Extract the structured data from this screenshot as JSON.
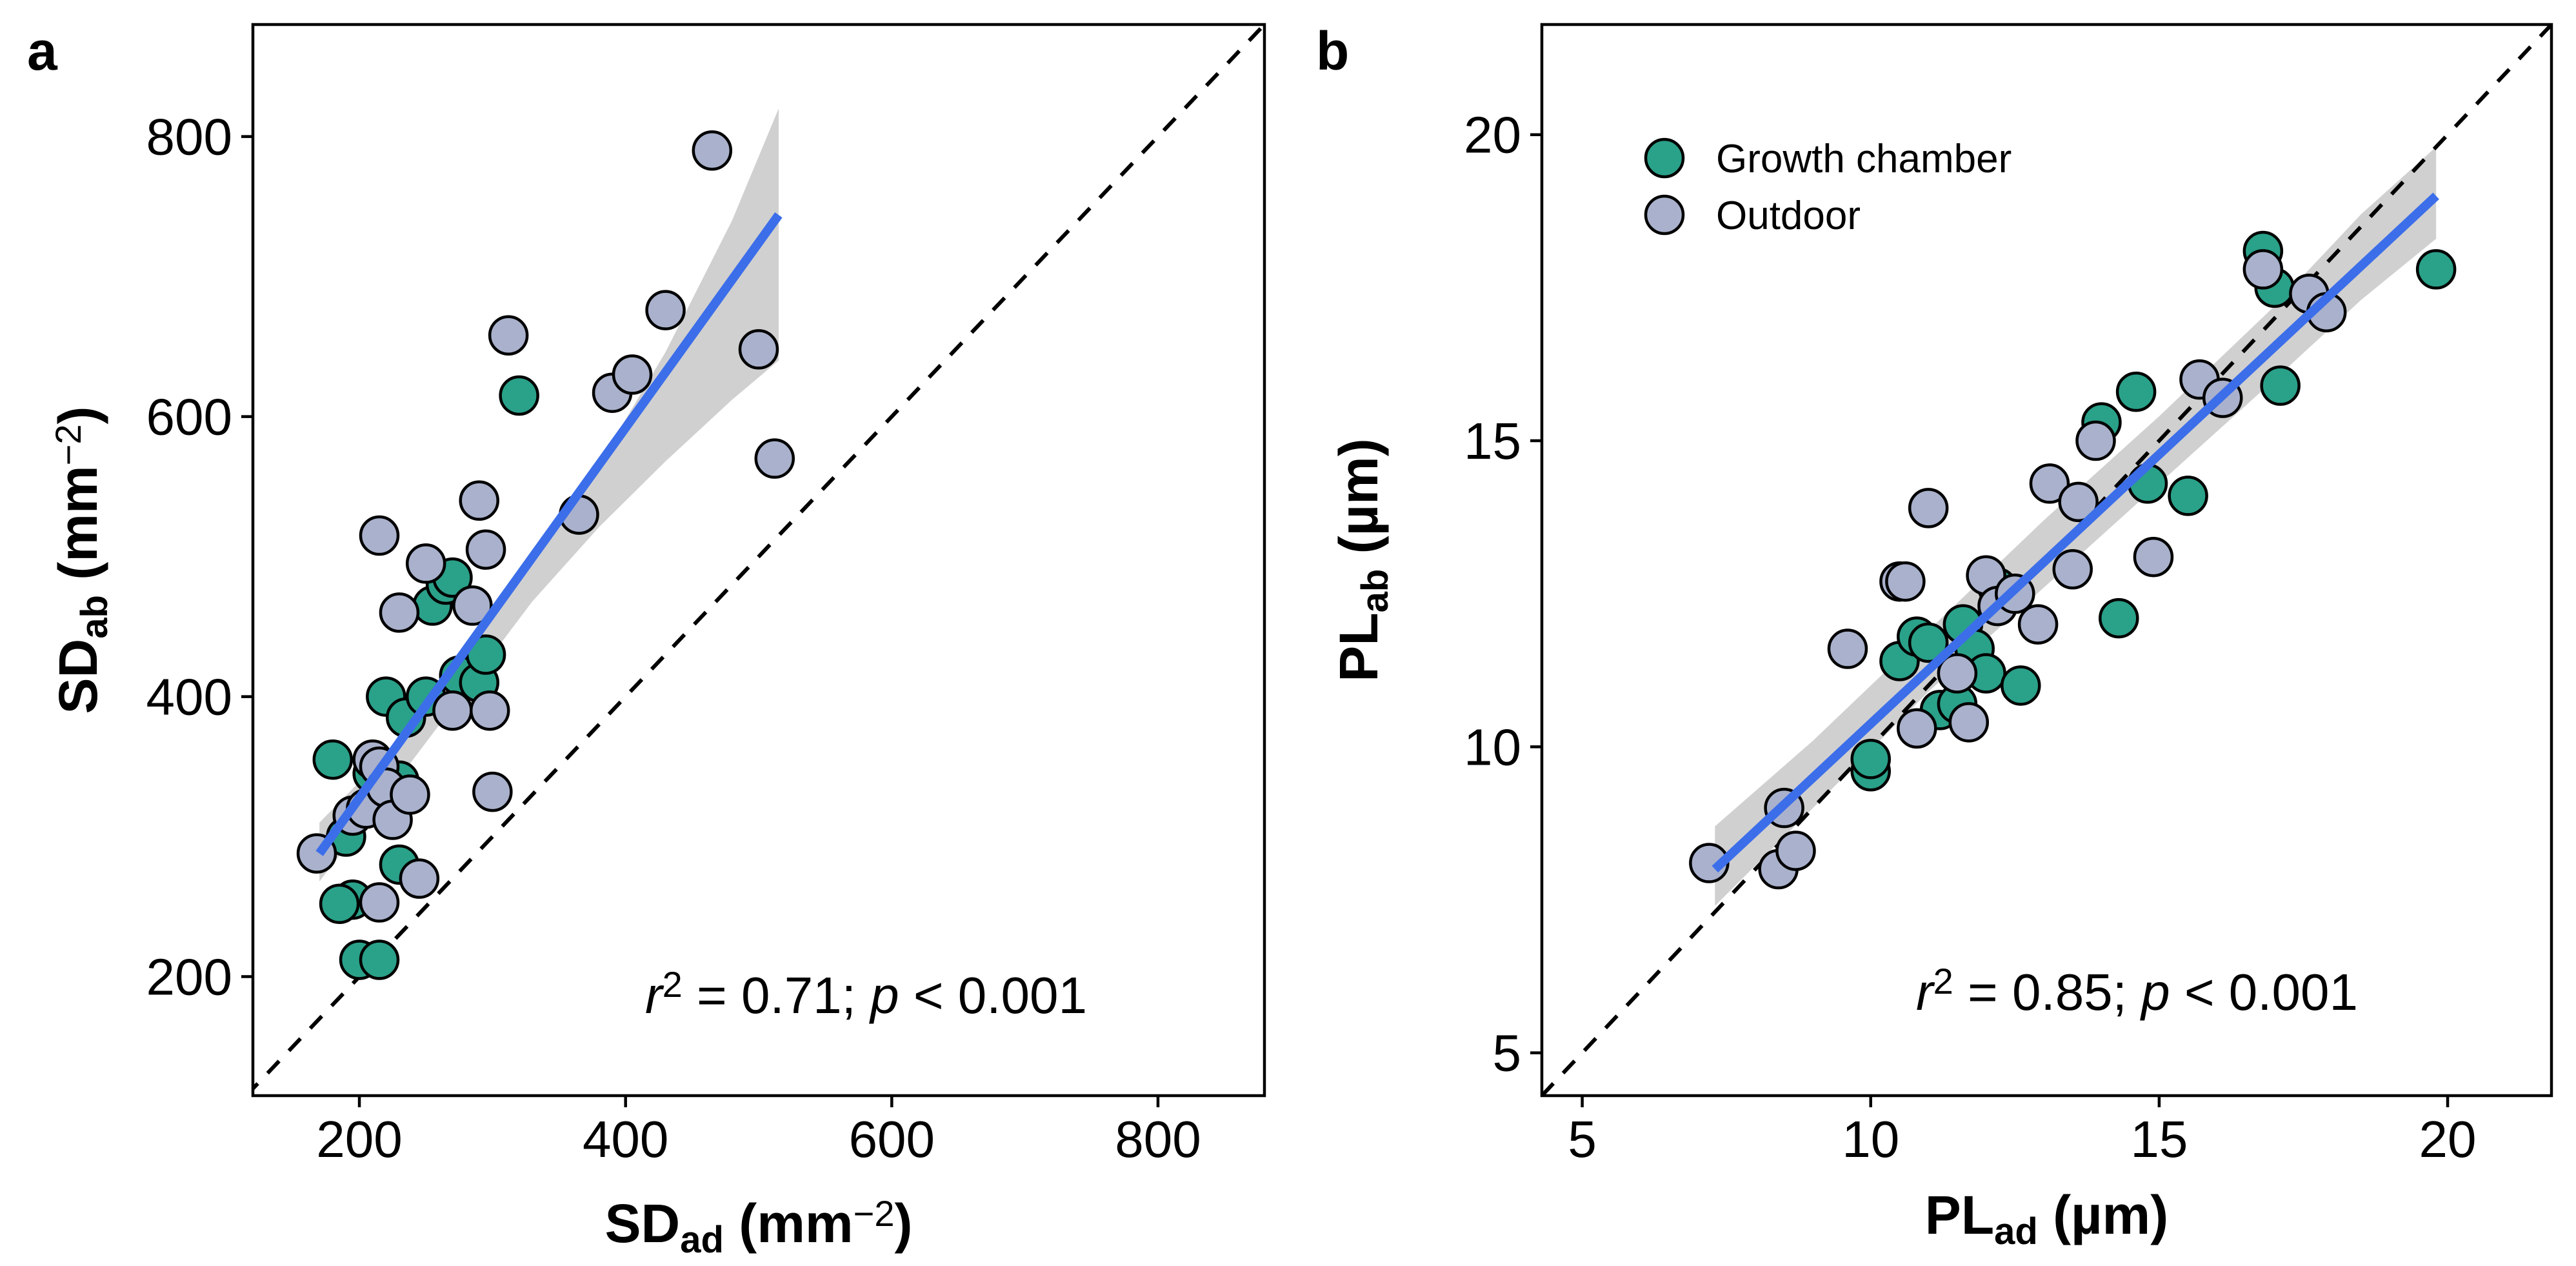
{
  "colors": {
    "growth_chamber": "#2aa189",
    "outdoor": "#a9b1cc",
    "fit_line": "#3c6eea",
    "ci_band": "#c8c8c8",
    "marker_edge": "#000000"
  },
  "legend": {
    "entries": [
      {
        "label": "Growth chamber",
        "color": "#2aa189"
      },
      {
        "label": "Outdoor",
        "color": "#a9b1cc"
      }
    ]
  },
  "chart_data": [
    {
      "type": "scatter",
      "panel": "a",
      "xlabel": {
        "main": "SD",
        "sub": "ad",
        "unit_pre": " (mm",
        "sup": "−2",
        "unit_post": ")"
      },
      "ylabel": {
        "main": "SD",
        "sub": "ab",
        "unit_pre": " (mm",
        "sup": "−2",
        "unit_post": ")"
      },
      "xlim": [
        120,
        880
      ],
      "ylim": [
        115,
        880
      ],
      "xticks": [
        200,
        400,
        600,
        800
      ],
      "yticks": [
        200,
        400,
        600,
        800
      ],
      "reference_line": "1:1 dashed",
      "fit": {
        "x": [
          170,
          515
        ],
        "y": [
          288,
          744
        ]
      },
      "ci_band": {
        "x": [
          170,
          230,
          280,
          330,
          380,
          430,
          480,
          515
        ],
        "lower": [
          268,
          342,
          405,
          468,
          521,
          568,
          612,
          640
        ],
        "upper": [
          310,
          368,
          436,
          500,
          566,
          646,
          740,
          820
        ]
      },
      "annotation": {
        "r": "r",
        "sup": "2",
        "mid": " = 0.71; ",
        "p": "p",
        "end": " < 0.001"
      },
      "series": [
        {
          "name": "Growth chamber",
          "points": [
            [
              180,
              355
            ],
            [
              190,
              300
            ],
            [
              195,
              255
            ],
            [
              185,
              252
            ],
            [
              200,
              212
            ],
            [
              215,
              212
            ],
            [
              220,
              400
            ],
            [
              225,
              330
            ],
            [
              230,
              280
            ],
            [
              235,
              385
            ],
            [
              250,
              400
            ],
            [
              255,
              465
            ],
            [
              265,
              480
            ],
            [
              270,
              485
            ],
            [
              275,
              415
            ],
            [
              290,
              410
            ],
            [
              295,
              430
            ],
            [
              320,
              615
            ],
            [
              210,
              345
            ],
            [
              230,
              340
            ]
          ]
        },
        {
          "name": "Outdoor",
          "points": [
            [
              168,
              288
            ],
            [
              195,
              315
            ],
            [
              205,
              320
            ],
            [
              210,
              355
            ],
            [
              215,
              350
            ],
            [
              220,
              335
            ],
            [
              225,
              312
            ],
            [
              230,
              460
            ],
            [
              238,
              330
            ],
            [
              245,
              270
            ],
            [
              250,
              495
            ],
            [
              270,
              390
            ],
            [
              285,
              465
            ],
            [
              290,
              540
            ],
            [
              295,
              505
            ],
            [
              298,
              390
            ],
            [
              300,
              332
            ],
            [
              312,
              658
            ],
            [
              365,
              530
            ],
            [
              390,
              617
            ],
            [
              405,
              630
            ],
            [
              430,
              676
            ],
            [
              465,
              790
            ],
            [
              500,
              648
            ],
            [
              512,
              570
            ],
            [
              215,
              515
            ],
            [
              215,
              253
            ]
          ]
        }
      ]
    },
    {
      "type": "scatter",
      "panel": "b",
      "xlabel": {
        "main": "PL",
        "sub": "ad",
        "unit_pre": " (µm)",
        "sup": "",
        "unit_post": ""
      },
      "ylabel": {
        "main": "PL",
        "sub": "ab",
        "unit_pre": " (µm)",
        "sup": "",
        "unit_post": ""
      },
      "xlim": [
        4.3,
        21.8
      ],
      "ylim": [
        4.3,
        21.8
      ],
      "xticks": [
        5,
        10,
        15,
        20
      ],
      "yticks": [
        5,
        10,
        15,
        20
      ],
      "reference_line": "1:1 dashed",
      "fit": {
        "x": [
          7.3,
          19.8
        ],
        "y": [
          8.0,
          19.0
        ]
      },
      "ci_band": {
        "x": [
          7.3,
          9,
          11,
          13,
          15,
          17,
          18.5,
          19.8
        ],
        "lower": [
          7.4,
          9.0,
          10.9,
          12.6,
          14.3,
          16.0,
          17.3,
          18.3
        ],
        "upper": [
          8.7,
          10.1,
          11.9,
          13.7,
          15.4,
          17.2,
          18.7,
          19.8
        ]
      },
      "annotation": {
        "r": "r",
        "sup": "2",
        "mid": " = 0.85; ",
        "p": "p",
        "end": " < 0.001"
      },
      "series": [
        {
          "name": "Growth chamber",
          "points": [
            [
              10.0,
              9.6
            ],
            [
              10.0,
              9.8
            ],
            [
              10.5,
              11.4
            ],
            [
              10.8,
              11.8
            ],
            [
              11.0,
              11.7
            ],
            [
              11.2,
              10.6
            ],
            [
              11.5,
              10.7
            ],
            [
              11.6,
              12.0
            ],
            [
              11.8,
              11.6
            ],
            [
              12.0,
              11.2
            ],
            [
              12.2,
              12.6
            ],
            [
              12.6,
              11.0
            ],
            [
              14.0,
              15.3
            ],
            [
              14.3,
              12.1
            ],
            [
              14.6,
              15.8
            ],
            [
              14.8,
              14.3
            ],
            [
              15.5,
              14.1
            ],
            [
              16.8,
              18.1
            ],
            [
              17.0,
              17.5
            ],
            [
              17.1,
              15.9
            ],
            [
              19.8,
              17.8
            ]
          ]
        },
        {
          "name": "Outdoor",
          "points": [
            [
              7.2,
              8.1
            ],
            [
              8.4,
              8.0
            ],
            [
              8.5,
              9.0
            ],
            [
              8.7,
              8.3
            ],
            [
              9.6,
              11.6
            ],
            [
              10.5,
              12.7
            ],
            [
              10.6,
              12.7
            ],
            [
              10.8,
              10.3
            ],
            [
              11.0,
              13.9
            ],
            [
              11.5,
              11.2
            ],
            [
              11.7,
              10.4
            ],
            [
              12.0,
              12.8
            ],
            [
              12.2,
              12.3
            ],
            [
              12.5,
              12.5
            ],
            [
              12.9,
              12.0
            ],
            [
              13.1,
              14.3
            ],
            [
              13.5,
              12.9
            ],
            [
              13.6,
              14.0
            ],
            [
              13.9,
              15.0
            ],
            [
              14.9,
              13.1
            ],
            [
              15.7,
              16.0
            ],
            [
              16.1,
              15.7
            ],
            [
              16.8,
              17.8
            ],
            [
              17.6,
              17.4
            ],
            [
              17.9,
              17.1
            ]
          ]
        }
      ]
    }
  ]
}
